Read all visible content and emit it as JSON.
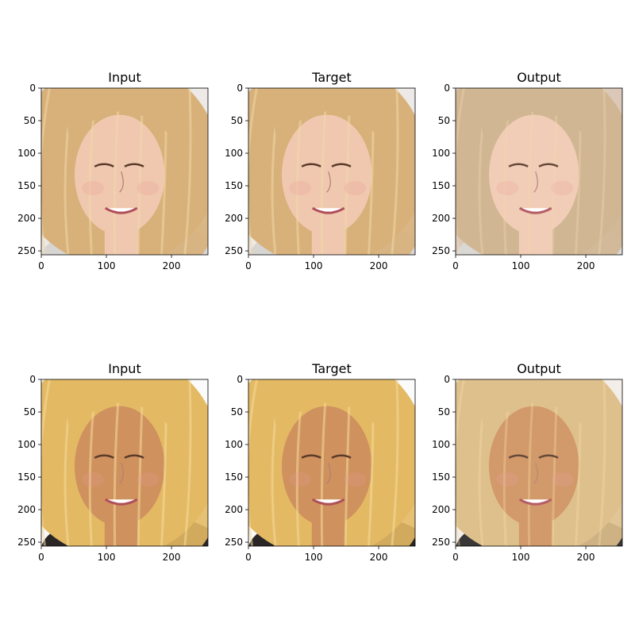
{
  "figure": {
    "rows": [
      {
        "panels": [
          {
            "title": "Input",
            "variant": "input"
          },
          {
            "title": "Target",
            "variant": "target"
          },
          {
            "title": "Output",
            "variant": "output"
          }
        ],
        "subject": {
          "hair_color": "#d8b07a",
          "hair_highlight": "#f0d8a8",
          "skin_color": "#f0c8b0",
          "background": "#ece9e6",
          "shirt_color": "#d7d5d2",
          "output_hair": "#cdb08a",
          "output_background": "#d8c4b4"
        }
      },
      {
        "panels": [
          {
            "title": "Input",
            "variant": "input"
          },
          {
            "title": "Target",
            "variant": "target"
          },
          {
            "title": "Output",
            "variant": "output"
          }
        ],
        "subject": {
          "hair_color": "#e3b964",
          "hair_highlight": "#f6dc9a",
          "skin_color": "#cf915e",
          "background": "#fbfbfb",
          "shirt_color": "#2a2626",
          "output_hair": "#dcbb84",
          "output_background": "#f3ede6"
        }
      }
    ],
    "axes": {
      "x_ticks": [
        "0",
        "100",
        "200"
      ],
      "x_tick_values": [
        0,
        100,
        200
      ],
      "y_ticks": [
        "0",
        "50",
        "100",
        "150",
        "200",
        "250"
      ],
      "y_tick_values": [
        0,
        50,
        100,
        150,
        200,
        250
      ],
      "x_range": [
        0,
        256
      ],
      "y_range": [
        0,
        256
      ]
    }
  }
}
